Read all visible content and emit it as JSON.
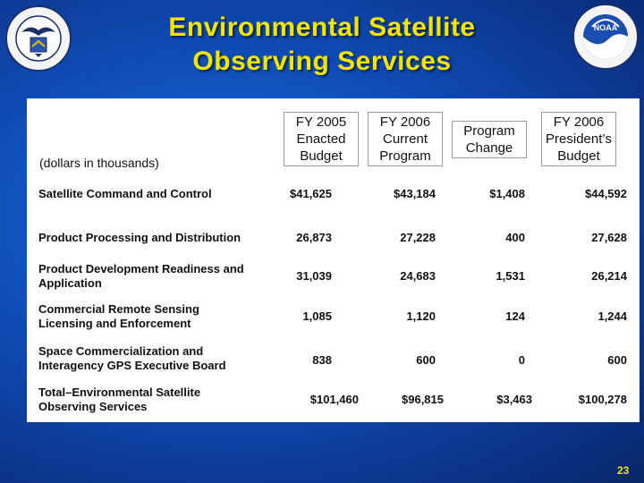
{
  "title_line1": "Environmental Satellite",
  "title_line2": "Observing Services",
  "units_label": "(dollars in thousands)",
  "columns": [
    "FY 2005 Enacted Budget",
    "FY 2006 Current Program",
    "Program Change",
    "FY 2006 President’s Budget"
  ],
  "columns_lines": [
    [
      "FY 2005",
      "Enacted",
      "Budget"
    ],
    [
      "FY 2006",
      "Current",
      "Program"
    ],
    [
      "Program",
      "Change"
    ],
    [
      "FY 2006",
      "President’s",
      "Budget"
    ]
  ],
  "rows": [
    {
      "label1": "Satellite Command and Control",
      "label2": "",
      "values": [
        "$41,625",
        "$43,184",
        "$1,408",
        "$44,592"
      ]
    },
    {
      "label1": "Product Processing and Distribution",
      "label2": "",
      "values": [
        "26,873",
        "27,228",
        "400",
        "27,628"
      ]
    },
    {
      "label1": "Product Development Readiness and",
      "label2": "Application",
      "values": [
        "31,039",
        "24,683",
        "1,531",
        "26,214"
      ]
    },
    {
      "label1": "Commercial Remote Sensing",
      "label2": "Licensing and Enforcement",
      "values": [
        "1,085",
        "1,120",
        "124",
        "1,244"
      ]
    },
    {
      "label1": "Space Commercialization and",
      "label2": "Interagency GPS Executive Board",
      "values": [
        "838",
        "600",
        "0",
        "600"
      ]
    },
    {
      "label1": "Total–Environmental Satellite",
      "label2": "Observing Services",
      "values": [
        "$101,460",
        "$96,815",
        "$3,463",
        "$100,278"
      ]
    }
  ],
  "page_number": "23",
  "colors": {
    "title": "#f2e600",
    "background": "#0f4bb5",
    "panel": "#ffffff"
  },
  "icons": {
    "left": "department-of-commerce-seal-icon",
    "right": "noaa-logo-icon"
  }
}
